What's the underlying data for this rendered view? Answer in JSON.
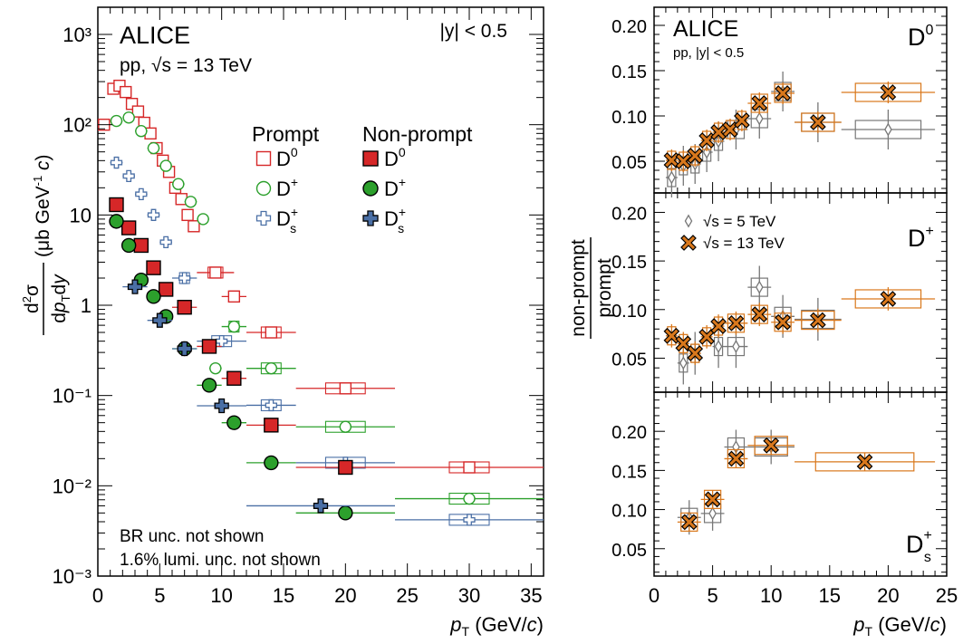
{
  "chart_data": [
    {
      "type": "scatter",
      "title": "ALICE",
      "subtitle": "pp, √s = 13 TeV",
      "rapidity_label": "|y| < 0.5",
      "xlabel": "p_T (GeV/c)",
      "ylabel": "d²σ/dp_Tdy (μb GeV⁻¹ c)",
      "yscale": "log",
      "xlim": [
        0,
        36
      ],
      "ylim": [
        0.001,
        2000
      ],
      "xticks": [
        "0",
        "5",
        "10",
        "15",
        "20",
        "25",
        "30",
        "35"
      ],
      "yticks": [
        "10⁻³",
        "10⁻²",
        "10⁻¹",
        "1",
        "10",
        "10²",
        "10³"
      ],
      "legend_header_prompt": "Prompt",
      "legend_header_nonprompt": "Non-prompt",
      "notes": [
        "BR unc. not shown",
        "1.6% lumi. unc. not shown"
      ],
      "series": [
        {
          "name": "Prompt D0",
          "species": "D0",
          "kind": "prompt",
          "color": "#d62728",
          "marker": "open-square",
          "points": [
            [
              0.5,
              100
            ],
            [
              1.25,
              250
            ],
            [
              1.75,
              270
            ],
            [
              2.25,
              230
            ],
            [
              2.75,
              170
            ],
            [
              3.25,
              140
            ],
            [
              3.75,
              105
            ],
            [
              4.25,
              80
            ],
            [
              4.75,
              55
            ],
            [
              5.25,
              40
            ],
            [
              5.75,
              30
            ],
            [
              6.25,
              20
            ],
            [
              6.75,
              15
            ],
            [
              7.25,
              10
            ],
            [
              7.75,
              7.5
            ],
            [
              9.5,
              2.3
            ],
            [
              11,
              1.25
            ],
            [
              14,
              0.5
            ],
            [
              20,
              0.12
            ],
            [
              30,
              0.016
            ]
          ],
          "xerr": [
            0.5,
            0.25,
            0.25,
            0.25,
            0.25,
            0.25,
            0.25,
            0.25,
            0.25,
            0.25,
            0.25,
            0.25,
            0.25,
            0.25,
            0.25,
            1.5,
            1,
            2,
            4,
            6
          ]
        },
        {
          "name": "Prompt D+",
          "species": "D+",
          "kind": "prompt",
          "color": "#2ca02c",
          "marker": "open-circle",
          "points": [
            [
              1.5,
              110
            ],
            [
              2.5,
              120
            ],
            [
              3.5,
              85
            ],
            [
              4.5,
              55
            ],
            [
              5.5,
              35
            ],
            [
              6.5,
              22
            ],
            [
              7.5,
              14
            ],
            [
              8.5,
              9
            ],
            [
              9.5,
              0.2
            ],
            [
              11,
              0.58
            ],
            [
              14,
              0.2
            ],
            [
              20,
              0.045
            ],
            [
              30,
              0.0072
            ]
          ],
          "xerr": [
            0.5,
            0.5,
            0.5,
            0.5,
            0.5,
            0.5,
            0.5,
            0.5,
            0.5,
            1,
            2,
            4,
            6
          ]
        },
        {
          "name": "Prompt Ds+",
          "species": "Ds+",
          "kind": "prompt",
          "color": "#4a6fa5",
          "marker": "open-cross",
          "points": [
            [
              1.5,
              38
            ],
            [
              2.5,
              27
            ],
            [
              3.5,
              17
            ],
            [
              4.5,
              10
            ],
            [
              5.5,
              5
            ],
            [
              7,
              2
            ],
            [
              10,
              0.4
            ],
            [
              14,
              0.078
            ],
            [
              20,
              0.018
            ],
            [
              30,
              0.0042
            ]
          ],
          "xerr": [
            0.5,
            0.5,
            0.5,
            0.5,
            0.5,
            1,
            2,
            2,
            4,
            6
          ]
        },
        {
          "name": "Non-prompt D0",
          "species": "D0",
          "kind": "non-prompt",
          "color": "#d62728",
          "marker": "full-square",
          "points": [
            [
              1.5,
              13
            ],
            [
              2.5,
              7.2
            ],
            [
              3.5,
              4.6
            ],
            [
              4.5,
              2.6
            ],
            [
              5.5,
              1.5
            ],
            [
              7,
              0.95
            ],
            [
              9,
              0.35
            ],
            [
              11,
              0.155
            ],
            [
              14,
              0.047
            ],
            [
              20,
              0.016
            ]
          ],
          "xerr": [
            0.5,
            0.5,
            0.5,
            0.5,
            0.5,
            1,
            1,
            1,
            2,
            4
          ]
        },
        {
          "name": "Non-prompt D+",
          "species": "D+",
          "kind": "non-prompt",
          "color": "#2ca02c",
          "marker": "full-circle",
          "points": [
            [
              1.5,
              8.5
            ],
            [
              2.5,
              4.6
            ],
            [
              3.5,
              1.9
            ],
            [
              4.5,
              1.25
            ],
            [
              5.5,
              0.75
            ],
            [
              7,
              0.33
            ],
            [
              9,
              0.13
            ],
            [
              11,
              0.05
            ],
            [
              14,
              0.018
            ],
            [
              20,
              0.005
            ]
          ],
          "xerr": [
            0.5,
            0.5,
            0.5,
            0.5,
            0.5,
            1,
            1,
            1,
            2,
            4
          ]
        },
        {
          "name": "Non-prompt Ds+",
          "species": "Ds+",
          "kind": "non-prompt",
          "color": "#4a6fa5",
          "marker": "full-cross",
          "points": [
            [
              3,
              1.6
            ],
            [
              5,
              0.68
            ],
            [
              7,
              0.33
            ],
            [
              10,
              0.077
            ],
            [
              18,
              0.006
            ]
          ],
          "xerr": [
            1,
            1,
            1,
            2,
            6
          ]
        }
      ]
    },
    {
      "type": "scatter",
      "title": "ALICE",
      "subtitle": "pp, |y| < 0.5",
      "species_label": "D⁰",
      "xlim": [
        0,
        25
      ],
      "ylim": [
        0.015,
        0.22
      ],
      "yticks": [
        "0.05",
        "0.10",
        "0.15",
        "0.20"
      ],
      "series": [
        {
          "name": "√s = 5 TeV",
          "color": "#777777",
          "marker": "open-diamond",
          "points": [
            [
              1.5,
              0.032
            ],
            [
              2.5,
              0.045
            ],
            [
              3.5,
              0.047
            ],
            [
              4.5,
              0.06
            ],
            [
              5.5,
              0.072
            ],
            [
              7,
              0.085
            ],
            [
              9,
              0.097
            ],
            [
              11,
              0.127
            ],
            [
              14,
              0.093
            ],
            [
              20,
              0.085
            ]
          ],
          "xerr": [
            0.5,
            0.5,
            0.5,
            0.5,
            0.5,
            1,
            1,
            1,
            2,
            4
          ]
        },
        {
          "name": "√s = 13 TeV",
          "color": "#d9781c",
          "marker": "full-x",
          "points": [
            [
              1.5,
              0.051
            ],
            [
              2.5,
              0.05
            ],
            [
              3.5,
              0.056
            ],
            [
              4.5,
              0.073
            ],
            [
              5.5,
              0.082
            ],
            [
              6.5,
              0.085
            ],
            [
              7.5,
              0.095
            ],
            [
              9,
              0.114
            ],
            [
              11,
              0.125
            ],
            [
              14,
              0.093
            ],
            [
              20,
              0.126
            ]
          ],
          "xerr": [
            0.5,
            0.5,
            0.5,
            0.5,
            0.5,
            0.5,
            0.5,
            1,
            1,
            2,
            4
          ]
        }
      ]
    },
    {
      "type": "scatter",
      "species_label": "D⁺",
      "ylabel": "non-prompt / prompt",
      "xlim": [
        0,
        25
      ],
      "ylim": [
        0.015,
        0.22
      ],
      "yticks": [
        "0.05",
        "0.10",
        "0.15",
        "0.20"
      ],
      "series": [
        {
          "name": "√s = 5 TeV",
          "color": "#777777",
          "marker": "open-diamond",
          "points": [
            [
              2.5,
              0.045
            ],
            [
              3.5,
              0.055
            ],
            [
              5.5,
              0.062
            ],
            [
              7,
              0.062
            ],
            [
              9,
              0.123
            ],
            [
              11,
              0.093
            ],
            [
              14,
              0.09
            ]
          ],
          "xerr": [
            0.5,
            0.5,
            0.5,
            1,
            1,
            1,
            2
          ]
        },
        {
          "name": "√s = 13 TeV",
          "color": "#d9781c",
          "marker": "full-x",
          "points": [
            [
              1.5,
              0.073
            ],
            [
              2.5,
              0.065
            ],
            [
              3.5,
              0.055
            ],
            [
              4.5,
              0.072
            ],
            [
              5.5,
              0.083
            ],
            [
              7,
              0.086
            ],
            [
              9,
              0.095
            ],
            [
              11,
              0.087
            ],
            [
              14,
              0.089
            ],
            [
              20,
              0.111
            ]
          ],
          "xerr": [
            0.5,
            0.5,
            0.5,
            0.5,
            0.5,
            1,
            1,
            1,
            2,
            4
          ]
        }
      ]
    },
    {
      "type": "scatter",
      "species_label": "D_s⁺",
      "xlabel": "p_T (GeV/c)",
      "xlim": [
        0,
        25
      ],
      "ylim": [
        0.015,
        0.25
      ],
      "xticks": [
        "0",
        "5",
        "10",
        "15",
        "20",
        "25"
      ],
      "yticks": [
        "0.05",
        "0.10",
        "0.15",
        "0.20"
      ],
      "series": [
        {
          "name": "√s = 5 TeV",
          "color": "#777777",
          "marker": "open-diamond",
          "points": [
            [
              3,
              0.09
            ],
            [
              5,
              0.095
            ],
            [
              7,
              0.18
            ],
            [
              10,
              0.18
            ]
          ],
          "xerr": [
            1,
            1,
            1,
            2
          ]
        },
        {
          "name": "√s = 13 TeV",
          "color": "#d9781c",
          "marker": "full-x",
          "points": [
            [
              3,
              0.084
            ],
            [
              5,
              0.113
            ],
            [
              7,
              0.165
            ],
            [
              10,
              0.182
            ],
            [
              18,
              0.161
            ]
          ],
          "xerr": [
            1,
            1,
            1,
            2,
            6
          ]
        }
      ]
    }
  ]
}
